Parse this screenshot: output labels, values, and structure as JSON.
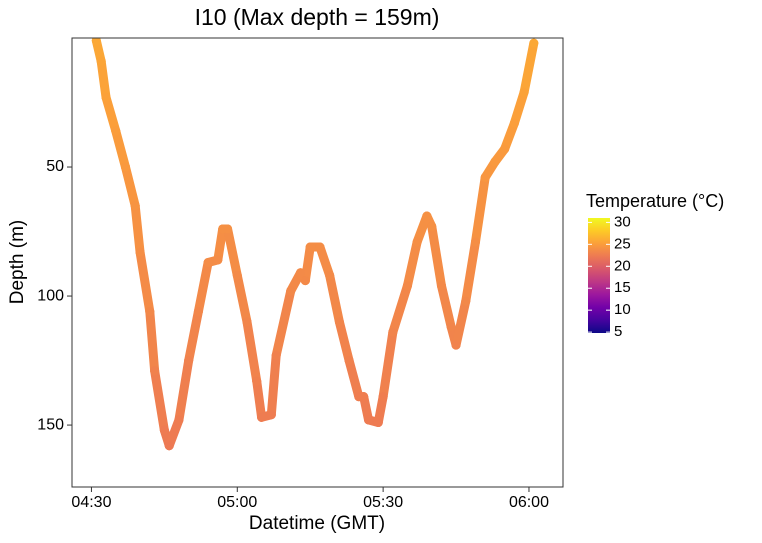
{
  "chart_data": {
    "type": "line",
    "title": "I10 (Max depth = 159m)",
    "x_label": "Datetime (GMT)",
    "y_label": "Depth (m)",
    "x": [
      "04:31",
      "04:32",
      "04:33",
      "04:35",
      "04:37",
      "04:39",
      "04:40",
      "04:42",
      "04:43",
      "04:45",
      "04:46",
      "04:48",
      "04:50",
      "04:52",
      "04:54",
      "04:56",
      "04:57",
      "04:58",
      "05:00",
      "05:02",
      "05:04",
      "05:05",
      "05:07",
      "05:08",
      "05:11",
      "05:13",
      "05:14",
      "05:15",
      "05:17",
      "05:19",
      "05:21",
      "05:23",
      "05:25",
      "05:26",
      "05:27",
      "05:29",
      "05:30",
      "05:32",
      "05:35",
      "05:37",
      "05:39",
      "05:40",
      "05:42",
      "05:44",
      "05:45",
      "05:47",
      "05:49",
      "05:51",
      "05:53",
      "05:55",
      "05:57",
      "05:59",
      "06:01"
    ],
    "values": [
      1,
      9,
      23,
      36,
      50,
      65,
      83,
      106,
      129,
      152,
      158,
      148,
      125,
      106,
      87,
      86,
      74,
      74,
      92,
      110,
      133,
      147,
      146,
      123,
      98,
      91,
      94,
      81,
      81,
      92,
      110,
      125,
      139,
      139,
      148,
      149,
      139,
      114,
      96,
      79,
      69,
      73,
      96,
      112,
      119,
      102,
      79,
      54,
      48,
      43,
      33,
      21,
      2
    ],
    "color_values": [
      25.8,
      25.6,
      25.3,
      25,
      24.7,
      24.3,
      23.9,
      23.4,
      22.9,
      22.4,
      22.3,
      22.5,
      22.9,
      23.3,
      23.7,
      23.7,
      24,
      24,
      23.6,
      23.2,
      22.8,
      22.5,
      22.5,
      22.9,
      23.4,
      23.6,
      23.5,
      23.8,
      23.8,
      23.6,
      23.2,
      22.9,
      22.6,
      22.6,
      22.4,
      22.4,
      22.6,
      23.1,
      23.5,
      23.9,
      24.1,
      24,
      23.5,
      23.2,
      23,
      23.4,
      23.9,
      24.5,
      24.7,
      24.8,
      25.1,
      25.4,
      25.8
    ],
    "xlim": [
      "04:26",
      "06:07"
    ],
    "xticks": [
      "04:30",
      "05:00",
      "05:30",
      "06:00"
    ],
    "ylim": [
      0,
      174
    ],
    "yticks": [
      50,
      100,
      150
    ],
    "y_reversed": true,
    "legend": {
      "title": "Temperature (°C)",
      "colormap": "plasma",
      "lim": [
        4.8,
        31
      ],
      "ticks": [
        30,
        25,
        20,
        15,
        10,
        5
      ]
    }
  }
}
